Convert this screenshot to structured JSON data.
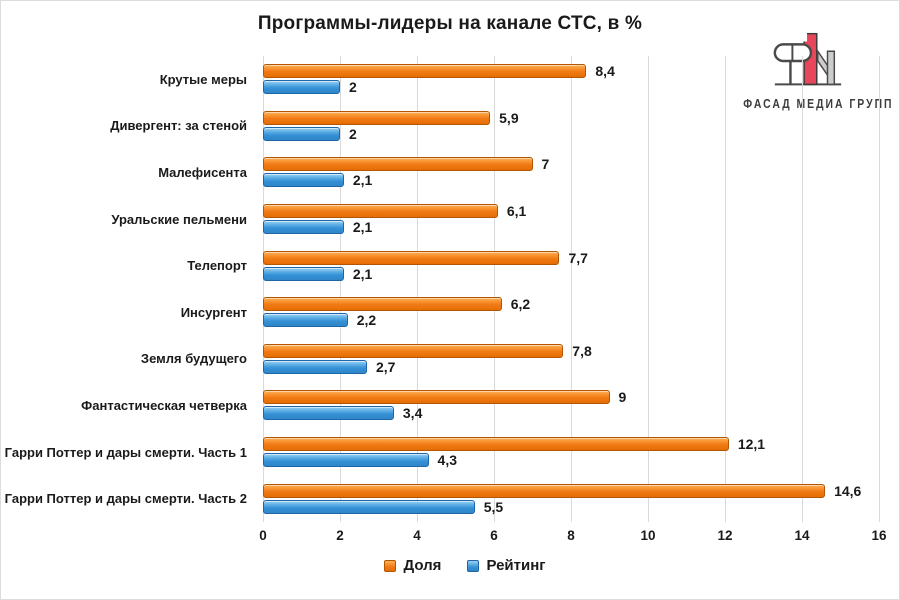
{
  "logo": {
    "text": "ФАСАД МЕДИА ГРУПП"
  },
  "chart_data": {
    "type": "bar",
    "orientation": "horizontal",
    "title": "Программы-лидеры на канале СТС, в %",
    "categories": [
      "Крутые меры",
      "Дивергент: за стеной",
      "Малефисента",
      "Уральские пельмени",
      "Телепорт",
      "Инсургент",
      "Земля будущего",
      "Фантастическая четверка",
      "Гарри Поттер и дары смерти. Часть 1",
      "Гарри Поттер и дары смерти. Часть 2"
    ],
    "series": [
      {
        "name": "Доля",
        "color": "#ED7D31",
        "values": [
          8.4,
          5.9,
          7,
          6.1,
          7.7,
          6.2,
          7.8,
          9,
          12.1,
          14.6
        ],
        "labels": [
          "8,4",
          "5,9",
          "7",
          "6,1",
          "7,7",
          "6,2",
          "7,8",
          "9",
          "12,1",
          "14,6"
        ]
      },
      {
        "name": "Рейтинг",
        "color": "#3E9BDC",
        "values": [
          2,
          2,
          2.1,
          2.1,
          2.1,
          2.2,
          2.7,
          3.4,
          4.3,
          5.5
        ],
        "labels": [
          "2",
          "2",
          "2,1",
          "2,1",
          "2,1",
          "2,2",
          "2,7",
          "3,4",
          "4,3",
          "5,5"
        ]
      }
    ],
    "xlim": [
      0,
      16
    ],
    "x_ticks": [
      "0",
      "2",
      "4",
      "6",
      "8",
      "10",
      "12",
      "14",
      "16"
    ],
    "grid": "vertical-gridlines",
    "legend_position": "bottom"
  }
}
